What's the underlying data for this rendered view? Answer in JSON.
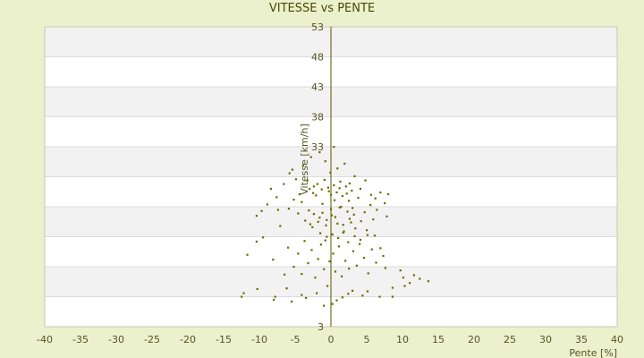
{
  "chart_data": {
    "type": "scatter",
    "title": "VITESSE vs PENTE",
    "xlabel": "Pente [%]",
    "ylabel": "Vitesse [km/h]",
    "xlim": [
      -40,
      40
    ],
    "ylim": [
      3,
      53
    ],
    "x_ticks": [
      -40,
      -35,
      -30,
      -25,
      -20,
      -15,
      -10,
      -5,
      0,
      5,
      10,
      15,
      20,
      25,
      30,
      35,
      40
    ],
    "y_ticks": [
      3,
      8,
      13,
      18,
      23,
      28,
      33,
      38,
      43,
      48,
      53
    ],
    "y_tick_labels_shown": [
      3,
      33,
      38,
      43,
      48,
      53
    ],
    "grid": "alternating horizontal bands",
    "point_color": "#6b6b00",
    "points": [
      [
        -12.5,
        8.0
      ],
      [
        -12.2,
        8.6
      ],
      [
        -10.3,
        9.3
      ],
      [
        -8.0,
        7.5
      ],
      [
        -7.8,
        8.0
      ],
      [
        -5.5,
        7.2
      ],
      [
        -4.1,
        8.3
      ],
      [
        -6.2,
        9.4
      ],
      [
        -3.5,
        7.8
      ],
      [
        -2.0,
        8.6
      ],
      [
        -1.0,
        6.5
      ],
      [
        0.2,
        6.8
      ],
      [
        0.8,
        7.4
      ],
      [
        1.6,
        7.9
      ],
      [
        2.4,
        8.5
      ],
      [
        -0.5,
        9.8
      ],
      [
        3.0,
        9.0
      ],
      [
        4.4,
        8.2
      ],
      [
        5.1,
        8.9
      ],
      [
        6.8,
        8.0
      ],
      [
        8.6,
        8.0
      ],
      [
        8.6,
        9.5
      ],
      [
        10.3,
        9.8
      ],
      [
        10.1,
        11.2
      ],
      [
        11.0,
        10.3
      ],
      [
        11.6,
        11.6
      ],
      [
        12.4,
        11.0
      ],
      [
        13.6,
        10.6
      ],
      [
        9.7,
        12.4
      ],
      [
        7.6,
        12.8
      ],
      [
        -11.7,
        15.0
      ],
      [
        -10.4,
        17.2
      ],
      [
        -9.5,
        17.9
      ],
      [
        -10.4,
        21.5
      ],
      [
        -9.7,
        22.3
      ],
      [
        -8.1,
        14.2
      ],
      [
        -7.1,
        19.8
      ],
      [
        -7.4,
        22.5
      ],
      [
        -6.0,
        16.2
      ],
      [
        -6.5,
        11.7
      ],
      [
        -5.2,
        13.0
      ],
      [
        -4.6,
        15.2
      ],
      [
        -4.1,
        11.8
      ],
      [
        -3.7,
        17.3
      ],
      [
        -3.2,
        13.6
      ],
      [
        -2.7,
        15.8
      ],
      [
        -2.2,
        11.2
      ],
      [
        -1.8,
        14.3
      ],
      [
        -1.4,
        16.7
      ],
      [
        -1.0,
        12.6
      ],
      [
        -0.6,
        18.0
      ],
      [
        -0.2,
        13.9
      ],
      [
        0.3,
        15.2
      ],
      [
        0.6,
        12.2
      ],
      [
        1.1,
        16.4
      ],
      [
        1.5,
        11.4
      ],
      [
        2.0,
        14.0
      ],
      [
        2.5,
        12.7
      ],
      [
        3.1,
        15.6
      ],
      [
        3.6,
        13.2
      ],
      [
        4.0,
        16.8
      ],
      [
        4.6,
        14.5
      ],
      [
        5.2,
        11.9
      ],
      [
        5.7,
        15.9
      ],
      [
        6.3,
        13.7
      ],
      [
        6.9,
        16.1
      ],
      [
        7.3,
        14.8
      ],
      [
        6.1,
        18.2
      ],
      [
        5.0,
        19.1
      ],
      [
        -8.4,
        26.0
      ],
      [
        -5.8,
        28.6
      ],
      [
        -5.4,
        29.2
      ],
      [
        -4.9,
        27.6
      ],
      [
        -4.4,
        25.1
      ],
      [
        -3.9,
        29.9
      ],
      [
        -3.3,
        27.4
      ],
      [
        -2.8,
        31.3
      ],
      [
        -2.4,
        26.4
      ],
      [
        -1.6,
        32.1
      ],
      [
        -0.8,
        30.6
      ],
      [
        -0.1,
        28.7
      ],
      [
        0.4,
        33.0
      ],
      [
        0.9,
        29.4
      ],
      [
        1.3,
        27.2
      ],
      [
        1.9,
        30.2
      ],
      [
        2.6,
        26.9
      ],
      [
        3.3,
        28.1
      ],
      [
        4.1,
        26.0
      ],
      [
        4.8,
        27.4
      ],
      [
        5.6,
        25.0
      ],
      [
        6.2,
        24.4
      ],
      [
        6.9,
        25.4
      ],
      [
        7.5,
        23.6
      ],
      [
        8.0,
        25.1
      ],
      [
        7.8,
        21.4
      ],
      [
        -8.9,
        23.4
      ],
      [
        -7.6,
        24.6
      ],
      [
        -6.6,
        26.8
      ],
      [
        -5.9,
        22.7
      ],
      [
        -5.2,
        24.2
      ],
      [
        -4.6,
        21.9
      ],
      [
        -4.1,
        23.8
      ],
      [
        -3.6,
        20.7
      ],
      [
        -3.1,
        22.4
      ],
      [
        -2.6,
        19.6
      ],
      [
        -2.1,
        24.9
      ],
      [
        -1.6,
        21.2
      ],
      [
        -1.2,
        23.5
      ],
      [
        -0.7,
        19.9
      ],
      [
        -0.3,
        25.6
      ],
      [
        0.1,
        21.6
      ],
      [
        0.5,
        24.1
      ],
      [
        0.9,
        20.2
      ],
      [
        1.4,
        23.0
      ],
      [
        1.8,
        18.9
      ],
      [
        2.2,
        25.2
      ],
      [
        2.6,
        21.0
      ],
      [
        3.0,
        22.8
      ],
      [
        3.4,
        19.4
      ],
      [
        3.8,
        24.5
      ],
      [
        4.2,
        20.6
      ],
      [
        4.7,
        22.1
      ],
      [
        5.1,
        18.3
      ],
      [
        5.5,
        23.3
      ],
      [
        5.9,
        20.9
      ],
      [
        6.4,
        22.5
      ],
      [
        -3.0,
        26.0
      ],
      [
        -2.5,
        25.3
      ],
      [
        -1.9,
        26.8
      ],
      [
        -1.3,
        25.9
      ],
      [
        -0.9,
        27.5
      ],
      [
        -0.4,
        26.2
      ],
      [
        0.0,
        25.0
      ],
      [
        0.4,
        26.6
      ],
      [
        0.8,
        25.4
      ],
      [
        1.2,
        26.1
      ],
      [
        1.6,
        24.8
      ],
      [
        2.1,
        26.4
      ],
      [
        2.5,
        24.0
      ],
      [
        2.9,
        25.7
      ],
      [
        -2.9,
        20.1
      ],
      [
        -2.4,
        21.8
      ],
      [
        -1.8,
        20.5
      ],
      [
        -1.2,
        22.0
      ],
      [
        -0.6,
        20.8
      ],
      [
        0.0,
        22.6
      ],
      [
        0.6,
        21.3
      ],
      [
        1.2,
        22.9
      ],
      [
        1.7,
        20.0
      ],
      [
        2.3,
        22.2
      ],
      [
        2.8,
        20.4
      ],
      [
        3.2,
        21.7
      ],
      [
        -1.5,
        18.6
      ],
      [
        -0.8,
        17.4
      ],
      [
        0.2,
        18.4
      ],
      [
        1.0,
        17.8
      ],
      [
        1.7,
        18.7
      ],
      [
        2.4,
        17.1
      ],
      [
        3.3,
        18.1
      ],
      [
        4.1,
        17.5
      ]
    ]
  }
}
